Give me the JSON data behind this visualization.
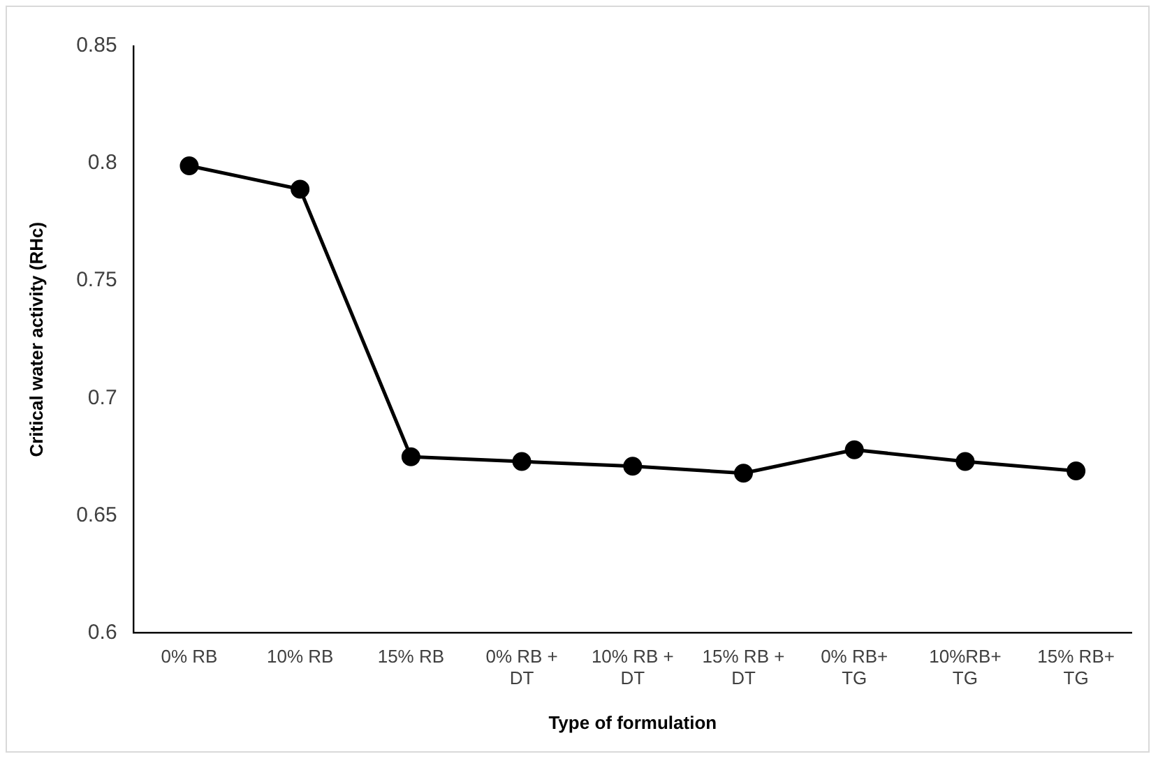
{
  "chart_data": {
    "type": "line",
    "xlabel": "Type of formulation",
    "ylabel": "Critical water activity (RHc)",
    "categories": [
      "0% RB",
      "10% RB",
      "15% RB",
      "0% RB + DT",
      "10% RB + DT",
      "15% RB + DT",
      "0% RB+ TG",
      "10%RB+ TG",
      "15% RB+ TG"
    ],
    "series": [
      {
        "color": "#000000",
        "values": [
          0.799,
          0.789,
          0.675,
          0.673,
          0.671,
          0.668,
          0.678,
          0.673,
          0.669
        ]
      }
    ],
    "ylim": [
      0.6,
      0.85
    ],
    "yticks": [
      0.6,
      0.65,
      0.7,
      0.75,
      0.8,
      0.85
    ],
    "grid": false,
    "legend": false,
    "marker": "circle",
    "line_style": "solid"
  }
}
